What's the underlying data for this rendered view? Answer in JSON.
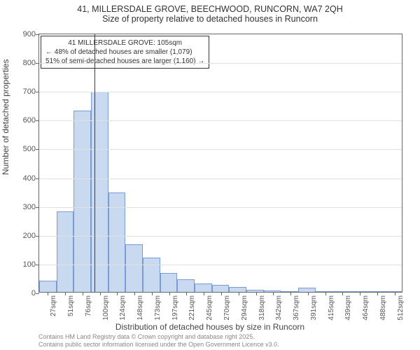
{
  "title": {
    "line1": "41, MILLERSDALE GROVE, BEECHWOOD, RUNCORN, WA7 2QH",
    "line2": "Size of property relative to detached houses in Runcorn"
  },
  "chart": {
    "type": "histogram",
    "background_color": "#ffffff",
    "grid_color": "#e0e0e0",
    "axis_color": "#666666",
    "bar_fill": "#c9d9f0",
    "bar_border": "#7a9cd4",
    "marker_line_color": "#cc0000",
    "annotation_border": "#333333",
    "ylim": [
      0,
      900
    ],
    "ytick_step": 100,
    "ylabel": "Number of detached properties",
    "xlabel": "Distribution of detached houses by size in Runcorn",
    "x_categories": [
      "27sqm",
      "51sqm",
      "76sqm",
      "100sqm",
      "124sqm",
      "148sqm",
      "173sqm",
      "197sqm",
      "221sqm",
      "245sqm",
      "270sqm",
      "294sqm",
      "318sqm",
      "342sqm",
      "367sqm",
      "391sqm",
      "415sqm",
      "439sqm",
      "464sqm",
      "488sqm",
      "512sqm"
    ],
    "values": [
      40,
      280,
      630,
      695,
      345,
      165,
      120,
      65,
      45,
      30,
      25,
      18,
      8,
      5,
      3,
      15,
      2,
      0,
      0,
      2,
      0
    ],
    "marker_bin_index": 3,
    "marker_position_in_bin": 0.21,
    "label_fontsize": 12,
    "tick_fontsize": 10,
    "title_fontsize": 12.5
  },
  "annotation": {
    "line1": "41 MILLERSDALE GROVE: 105sqm",
    "line2": "← 48% of detached houses are smaller (1,079)",
    "line3": "51% of semi-detached houses are larger (1,160) →"
  },
  "credit": {
    "line1": "Contains HM Land Registry data © Crown copyright and database right 2025.",
    "line2": "Contains public sector information licensed under the Open Government Licence v3.0."
  }
}
